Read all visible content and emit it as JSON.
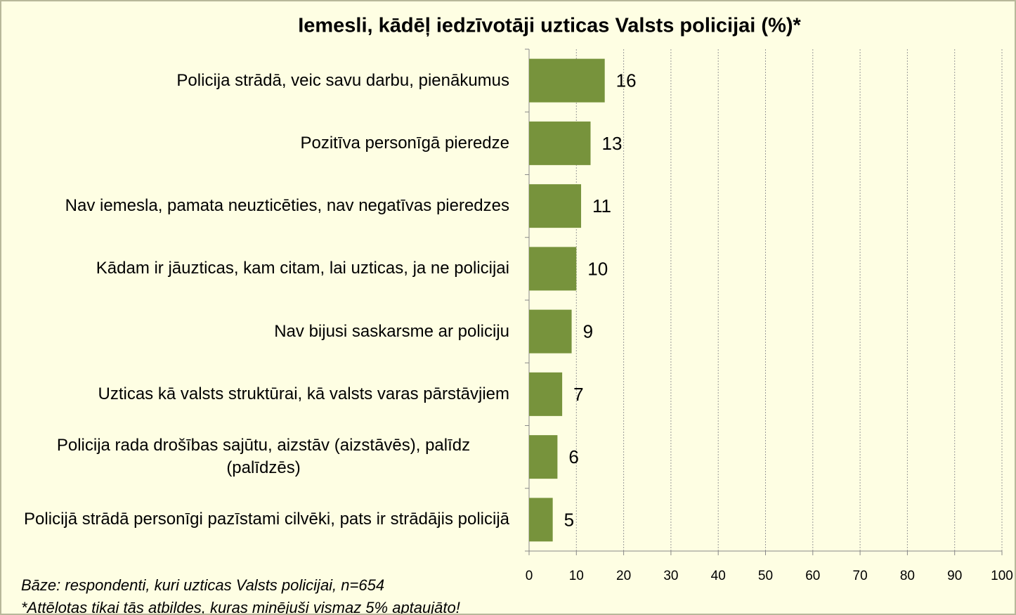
{
  "chart_data": {
    "type": "bar",
    "orientation": "horizontal",
    "title": "Iemesli, kādēļ iedzīvotāji uzticas Valsts policijai (%)*",
    "categories": [
      "Policija strādā, veic savu darbu, pienākumus",
      "Pozitīva personīgā pieredze",
      "Nav iemesla, pamata neuzticēties, nav negatīvas pieredzes",
      "Kādam ir jāuzticas, kam citam, lai uzticas, ja ne policijai",
      "Nav bijusi saskarsme ar policiju",
      "Uzticas kā valsts struktūrai, kā valsts varas pārstāvjiem",
      "Policija rada drošības sajūtu, aizstāv (aizstāvēs), palīdz (palīdzēs)",
      "Policijā strādā personīgi pazīstami cilvēki, pats ir strādājis policijā"
    ],
    "values": [
      16,
      13,
      11,
      10,
      9,
      7,
      6,
      5
    ],
    "color": "#77933c",
    "xlim": [
      0,
      100
    ],
    "xticks": [
      0,
      10,
      20,
      30,
      40,
      50,
      60,
      70,
      80,
      90,
      100
    ],
    "grid": true,
    "notes": [
      "Bāze: respondenti, kuri uzticas Valsts policijai, n=654",
      "*Attēlotas tikai tās atbildes, kuras minējuši vismaz 5% aptaujāto!"
    ]
  }
}
